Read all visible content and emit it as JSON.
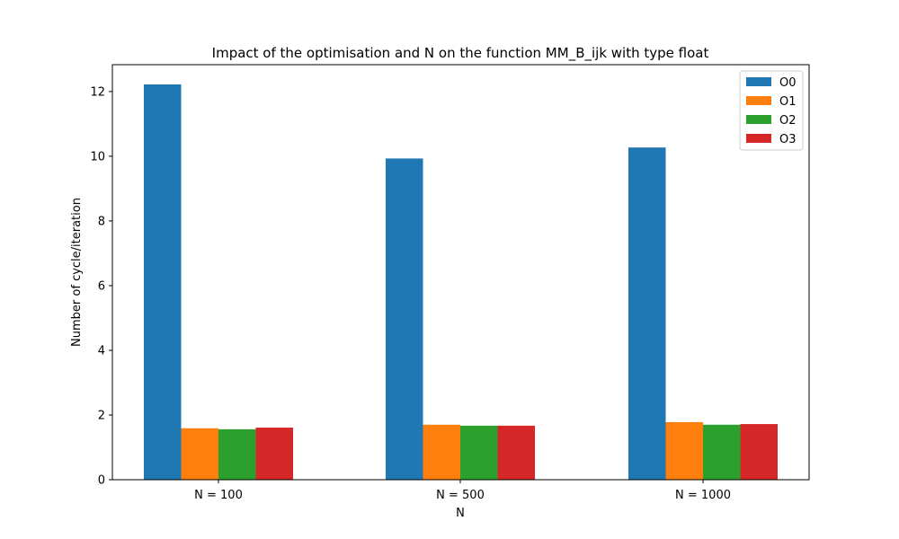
{
  "chart_data": {
    "type": "bar",
    "title": "Impact of the optimisation and N on the function MM_B_ijk with type float",
    "xlabel": "N",
    "ylabel": "Number of cycle/iteration",
    "categories": [
      "N = 100",
      "N = 500",
      "N = 1000"
    ],
    "series": [
      {
        "name": "O0",
        "color": "#1f77b4",
        "values": [
          12.22,
          9.93,
          10.27
        ]
      },
      {
        "name": "O1",
        "color": "#ff7f0e",
        "values": [
          1.59,
          1.7,
          1.78
        ]
      },
      {
        "name": "O2",
        "color": "#2ca02c",
        "values": [
          1.56,
          1.67,
          1.7
        ]
      },
      {
        "name": "O3",
        "color": "#d62728",
        "values": [
          1.61,
          1.67,
          1.72
        ]
      }
    ],
    "ylim": [
      0,
      12.83
    ],
    "yticks": [
      0,
      2,
      4,
      6,
      8,
      10,
      12
    ],
    "grid": false,
    "legend_position": "top-right"
  }
}
